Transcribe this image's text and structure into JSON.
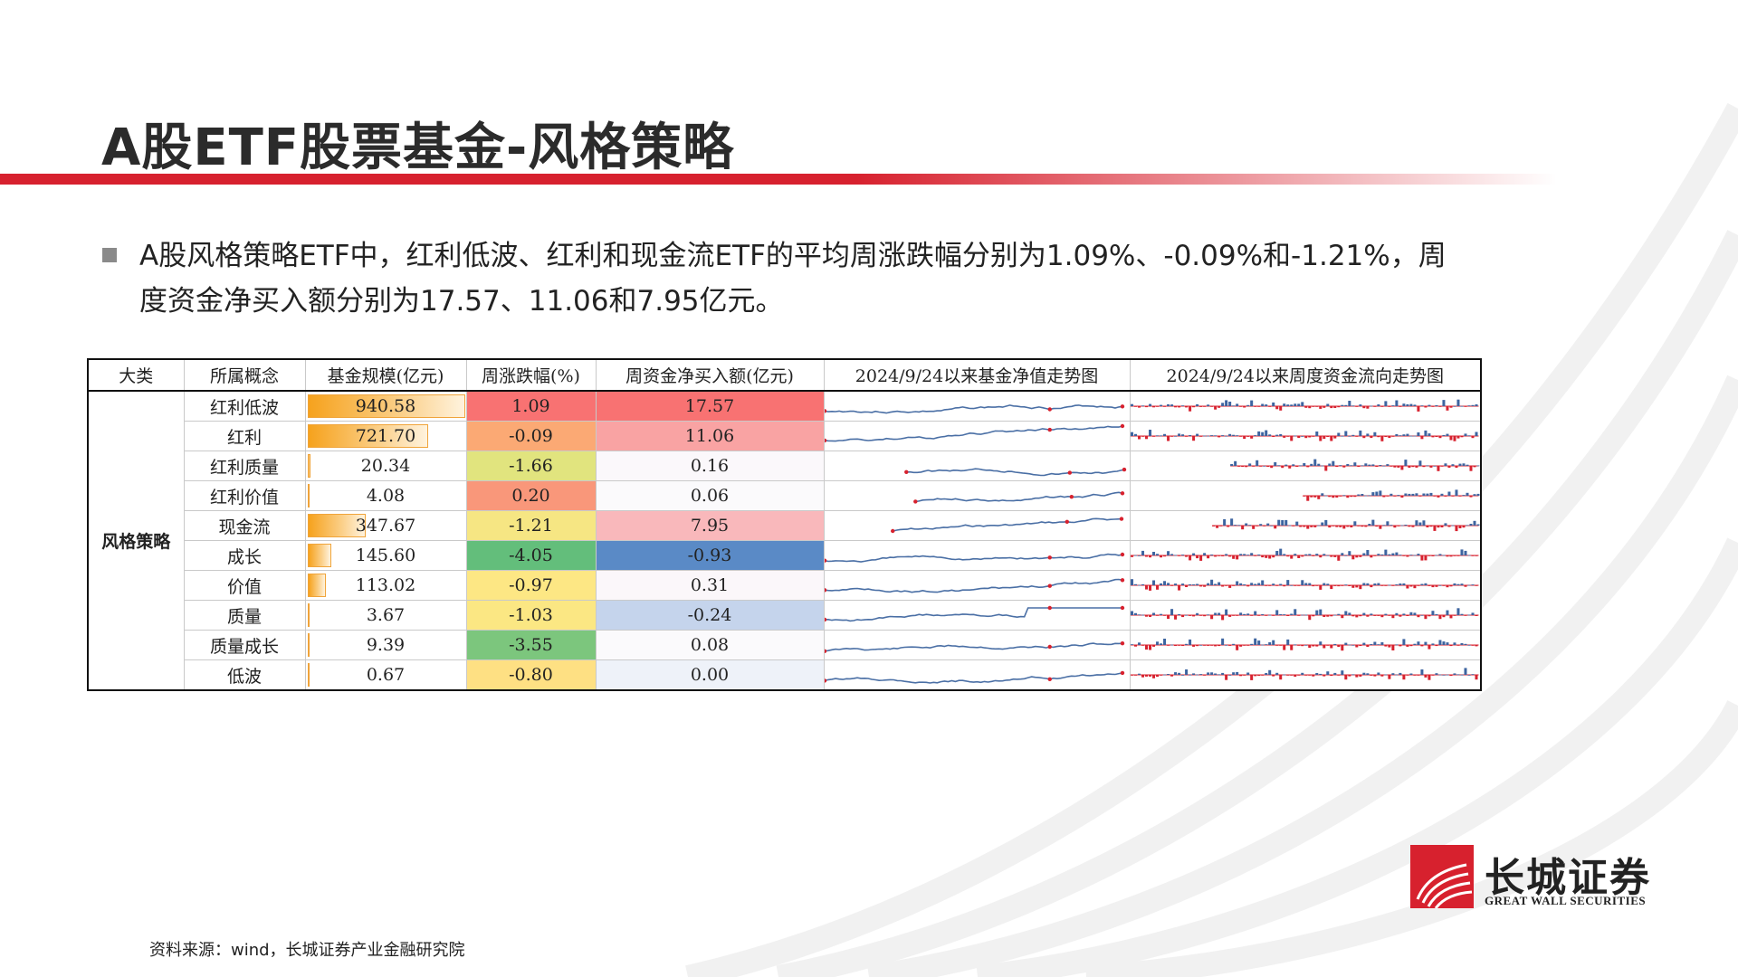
{
  "title": "A股ETF股票基金-风格策略",
  "summary": "A股风格策略ETF中，红利低波、红利和现金流ETF的平均周涨跌幅分别为1.09%、-0.09%和-1.21%，周度资金净买入额分别为17.57、11.06和7.95亿元。",
  "table": {
    "headers": [
      "大类",
      "所属概念",
      "基金规模(亿元)",
      "周涨跌幅(%)",
      "周资金净买入额(亿元)",
      "2024/9/24以来基金净值走势图",
      "2024/9/24以来周度资金流向走势图"
    ],
    "category": "风格策略",
    "rows": [
      {
        "concept": "红利低波",
        "scale": "940.58",
        "scale_value": 940.58,
        "change": "1.09",
        "change_color": "#f87272",
        "flow": "17.57",
        "flow_color": "#f87272"
      },
      {
        "concept": "红利",
        "scale": "721.70",
        "scale_value": 721.7,
        "change": "-0.09",
        "change_color": "#fba974",
        "flow": "11.06",
        "flow_color": "#f9a3a3"
      },
      {
        "concept": "红利质量",
        "scale": "20.34",
        "scale_value": 20.34,
        "change": "-1.66",
        "change_color": "#e1e47e",
        "flow": "0.16",
        "flow_color": "#fbf8fb"
      },
      {
        "concept": "红利价值",
        "scale": "4.08",
        "scale_value": 4.08,
        "change": "0.20",
        "change_color": "#f9977a",
        "flow": "0.06",
        "flow_color": "#fbfafc"
      },
      {
        "concept": "现金流",
        "scale": "347.67",
        "scale_value": 347.67,
        "change": "-1.21",
        "change_color": "#f6e683",
        "flow": "7.95",
        "flow_color": "#f9b8bb"
      },
      {
        "concept": "成长",
        "scale": "145.60",
        "scale_value": 145.6,
        "change": "-4.05",
        "change_color": "#63be7b",
        "flow": "-0.93",
        "flow_color": "#5a8ac6"
      },
      {
        "concept": "价值",
        "scale": "113.02",
        "scale_value": 113.02,
        "change": "-0.97",
        "change_color": "#fde784",
        "flow": "0.31",
        "flow_color": "#fbf7fa"
      },
      {
        "concept": "质量",
        "scale": "3.67",
        "scale_value": 3.67,
        "change": "-1.03",
        "change_color": "#fbe783",
        "flow": "-0.24",
        "flow_color": "#c5d4ec"
      },
      {
        "concept": "质量成长",
        "scale": "9.39",
        "scale_value": 9.39,
        "change": "-3.55",
        "change_color": "#7cc67d",
        "flow": "0.08",
        "flow_color": "#fbfafc"
      },
      {
        "concept": "低波",
        "scale": "0.67",
        "scale_value": 0.67,
        "change": "-0.80",
        "change_color": "#fee083",
        "flow": "0.00",
        "flow_color": "#eef2f9"
      }
    ]
  },
  "source": "资料来源：wind，长城证券产业金融研究院",
  "logo": {
    "name_cn": "长城证券",
    "name_en": "GREAT WALL SECURITIES"
  },
  "colors": {
    "brand_red": "#d7212e",
    "line_blue": "#4a6fa5",
    "bar_blue": "#3d64a0",
    "bar_red": "#d7212e",
    "scale_bar": "#f6a21d"
  }
}
